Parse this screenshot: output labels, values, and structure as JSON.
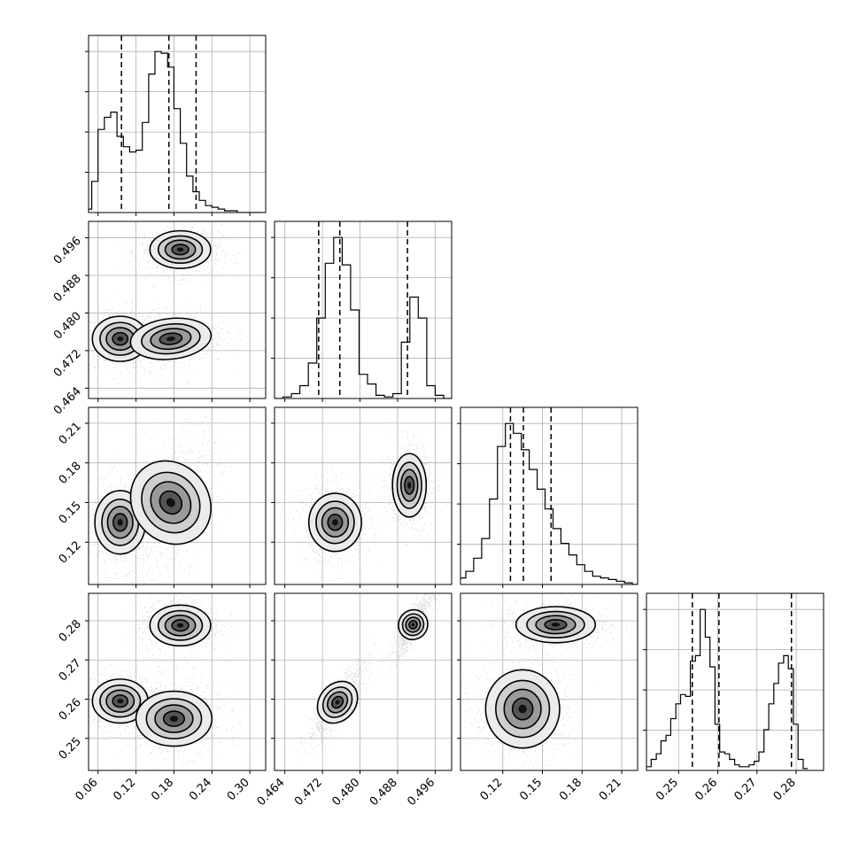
{
  "chart_data": {
    "type": "corner",
    "parameters": 4,
    "grid": true,
    "histograms": [
      {
        "param": 0,
        "bin_edges": [
          0.04,
          0.05,
          0.06,
          0.07,
          0.08,
          0.09,
          0.1,
          0.11,
          0.12,
          0.13,
          0.14,
          0.15,
          0.16,
          0.17,
          0.18,
          0.19,
          0.2,
          0.21,
          0.22,
          0.23,
          0.24,
          0.25,
          0.26,
          0.27,
          0.28,
          0.29,
          0.3,
          0.31,
          0.32
        ],
        "counts": [
          2,
          18,
          48,
          55,
          58,
          44,
          38,
          35,
          36,
          52,
          80,
          93,
          92,
          84,
          60,
          40,
          21,
          12,
          7,
          4,
          3,
          2,
          1,
          1,
          0,
          0,
          0,
          0
        ],
        "quantiles": [
          0.097,
          0.172,
          0.215
        ]
      },
      {
        "param": 1,
        "bin_edges": [
          0.4618,
          0.4636,
          0.4654,
          0.4672,
          0.469,
          0.4708,
          0.4726,
          0.4744,
          0.4762,
          0.478,
          0.4798,
          0.4816,
          0.4834,
          0.4852,
          0.487,
          0.4888,
          0.4906,
          0.4924,
          0.4942,
          0.496,
          0.4978,
          0.4996,
          0.5014
        ],
        "counts": [
          0,
          1,
          3,
          8,
          22,
          50,
          84,
          100,
          83,
          55,
          15,
          9,
          2,
          1,
          3,
          35,
          63,
          50,
          8,
          2,
          0,
          0
        ],
        "quantiles": [
          0.4712,
          0.4757,
          0.4901
        ]
      },
      {
        "param": 2,
        "bin_edges": [
          0.08,
          0.086,
          0.092,
          0.098,
          0.104,
          0.11,
          0.116,
          0.122,
          0.128,
          0.134,
          0.14,
          0.146,
          0.152,
          0.158,
          0.164,
          0.17,
          0.176,
          0.182,
          0.188,
          0.194,
          0.2,
          0.206,
          0.212,
          0.218,
          0.224
        ],
        "counts": [
          1,
          4,
          8,
          16,
          28,
          52,
          84,
          98,
          92,
          82,
          70,
          58,
          46,
          34,
          25,
          18,
          12,
          8,
          5,
          4,
          3,
          2,
          1,
          0
        ],
        "quantiles": [
          0.1258,
          0.1356,
          0.1565
        ]
      },
      {
        "param": 3,
        "bin_edges": [
          0.2418,
          0.243,
          0.2443,
          0.2455,
          0.2468,
          0.248,
          0.2493,
          0.2505,
          0.2518,
          0.253,
          0.2543,
          0.2555,
          0.2568,
          0.258,
          0.2593,
          0.2605,
          0.2618,
          0.263,
          0.2643,
          0.2655,
          0.2668,
          0.268,
          0.2693,
          0.2705,
          0.2718,
          0.273,
          0.2743,
          0.2755,
          0.2768,
          0.278,
          0.2793,
          0.2805,
          0.2818,
          0.283
        ],
        "counts": [
          2,
          6,
          9,
          16,
          19,
          28,
          36,
          41,
          40,
          59,
          62,
          87,
          72,
          56,
          25,
          10,
          9,
          6,
          3,
          2,
          2,
          3,
          5,
          10,
          22,
          36,
          47,
          58,
          62,
          55,
          25,
          6,
          1
        ],
        "quantiles": [
          0.2535,
          0.2603,
          0.2788
        ]
      }
    ],
    "joint": [
      {
        "row": 1,
        "col": 0,
        "modes": [
          [
            0.095,
            0.4745,
            0.022,
            0.0024,
            0
          ],
          [
            0.19,
            0.4935,
            0.024,
            0.002,
            0
          ],
          [
            0.175,
            0.4745,
            0.032,
            0.0024,
            0.2
          ]
        ]
      },
      {
        "row": 2,
        "col": 0,
        "modes": [
          [
            0.095,
            0.135,
            0.02,
            0.012,
            0
          ],
          [
            0.175,
            0.15,
            0.03,
            0.022,
            0.5
          ]
        ]
      },
      {
        "row": 2,
        "col": 1,
        "modes": [
          [
            0.4747,
            0.135,
            0.0028,
            0.011,
            0
          ],
          [
            0.4905,
            0.163,
            0.0018,
            0.012,
            0
          ]
        ]
      },
      {
        "row": 3,
        "col": 0,
        "modes": [
          [
            0.095,
            0.2595,
            0.022,
            0.0028,
            0
          ],
          [
            0.19,
            0.2788,
            0.024,
            0.0026,
            0
          ],
          [
            0.18,
            0.255,
            0.03,
            0.0035,
            0
          ]
        ]
      },
      {
        "row": 3,
        "col": 1,
        "modes": [
          [
            0.4752,
            0.2592,
            0.0024,
            0.004,
            0.85
          ],
          [
            0.4913,
            0.279,
            0.0016,
            0.0032,
            0.85
          ]
        ]
      },
      {
        "row": 3,
        "col": 2,
        "modes": [
          [
            0.135,
            0.2575,
            0.014,
            0.005,
            0
          ],
          [
            0.16,
            0.279,
            0.015,
            0.0023,
            0
          ]
        ]
      }
    ],
    "ranges": [
      [
        0.045,
        0.325
      ],
      [
        0.4618,
        0.4995
      ],
      [
        0.088,
        0.222
      ],
      [
        0.2418,
        0.287
      ]
    ],
    "xticks": [
      [
        "0.06",
        "0.12",
        "0.18",
        "0.24",
        "0.30"
      ],
      [
        "0.464",
        "0.472",
        "0.480",
        "0.488",
        "0.496"
      ],
      [
        "0.12",
        "0.15",
        "0.18",
        "0.21"
      ],
      [
        "0.25",
        "0.26",
        "0.27",
        "0.28"
      ]
    ],
    "yticks": [
      [],
      [
        "0.464",
        "0.472",
        "0.480",
        "0.488",
        "0.496"
      ],
      [
        "0.12",
        "0.15",
        "0.18",
        "0.21"
      ],
      [
        "0.25",
        "0.26",
        "0.27",
        "0.28"
      ]
    ]
  }
}
